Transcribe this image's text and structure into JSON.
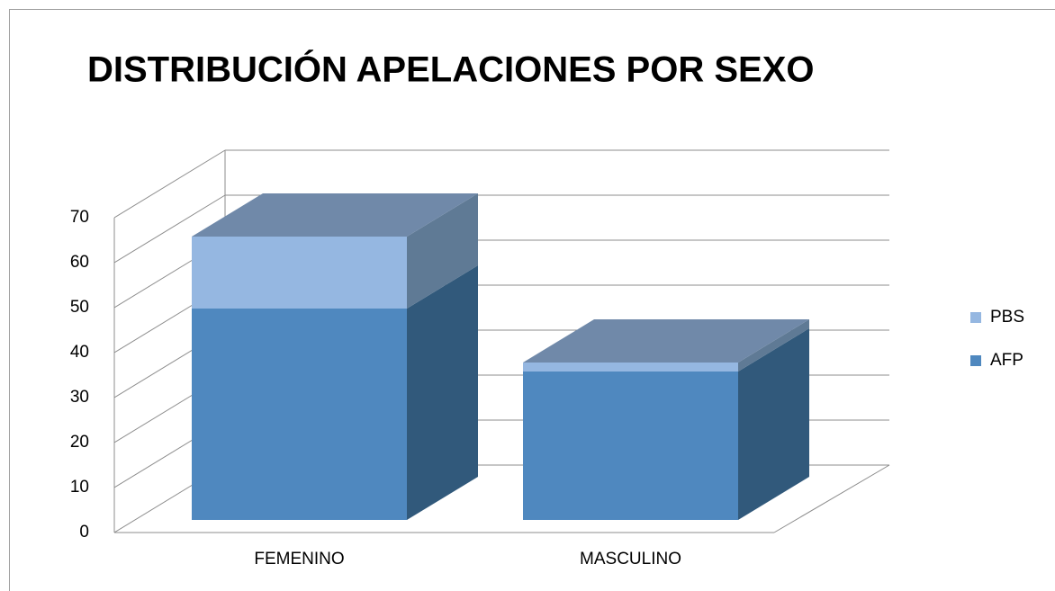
{
  "chart_data": {
    "type": "bar3d_stacked",
    "title": "DISTRIBUCIÓN APELACIONES POR SEXO",
    "categories": [
      "FEMENINO",
      "MASCULINO"
    ],
    "series": [
      {
        "name": "AFP",
        "color": "#4f88bf",
        "values": [
          47,
          33
        ]
      },
      {
        "name": "PBS",
        "color": "#95b7e1",
        "values": [
          16,
          2
        ]
      }
    ],
    "ylim": [
      0,
      70
    ],
    "yticks": [
      0,
      10,
      20,
      30,
      40,
      50,
      60,
      70
    ],
    "grid": true,
    "legend": "right"
  }
}
